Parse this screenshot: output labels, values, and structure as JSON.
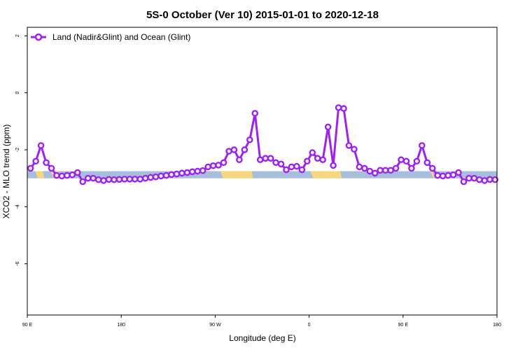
{
  "chart_data": {
    "type": "line",
    "title": "5S-0 October (Ver 10)   2015-01-01 to 2020-12-18",
    "xlabel": "Longitude (deg E)",
    "ylabel": "XCO2 - MLO trend (ppm)",
    "xlim": [
      90,
      450
    ],
    "ylim": [
      -7.8,
      2.3
    ],
    "x_ticks": [
      {
        "value": 90,
        "label": "90 E"
      },
      {
        "value": 162,
        "label": "180"
      },
      {
        "value": 234,
        "label": "90 W"
      },
      {
        "value": 306,
        "label": "0"
      },
      {
        "value": 378,
        "label": "90 E"
      },
      {
        "value": 450,
        "label": "180"
      }
    ],
    "y_ticks": [
      {
        "value": 2,
        "label": "2"
      },
      {
        "value": 0,
        "label": "0"
      },
      {
        "value": -2,
        "label": "-2"
      },
      {
        "value": -4,
        "label": "-4"
      },
      {
        "value": -6,
        "label": "-6"
      }
    ],
    "grid": false,
    "legend": {
      "position": "top-left"
    },
    "series": [
      {
        "name": "Land (Nadir&Glint) and Ocean (Glint)",
        "color": "#a020f0",
        "x": [
          92.5,
          96.5,
          100.5,
          104.5,
          108.5,
          112.5,
          116.5,
          120.5,
          124.5,
          128.5,
          132.5,
          136.5,
          140.5,
          144.5,
          148.5,
          152.5,
          156.5,
          160.5,
          164.5,
          168.5,
          172.5,
          176.5,
          180.5,
          184.5,
          188.5,
          192.5,
          196.5,
          200.5,
          204.5,
          208.5,
          212.5,
          216.5,
          220.5,
          224.5,
          228.5,
          232.5,
          236.5,
          240.5,
          244.5,
          248.5,
          252.5,
          256.5,
          260.5,
          264.5,
          268.5,
          272.5,
          276.5,
          280.5,
          284.5,
          288.5,
          292.5,
          296.5,
          300.5,
          304.5,
          308.5,
          312.5,
          316.5,
          320.5,
          324.5,
          328.5,
          332.5,
          336.5,
          340.5,
          344.5,
          348.5,
          352.5,
          356.5,
          360.5,
          364.5,
          368.5,
          372.5,
          376.5,
          380.5,
          384.5,
          388.5,
          392.5,
          396.5,
          400.5,
          404.5,
          408.5,
          412.5,
          416.5,
          420.5,
          424.5,
          428.5,
          432.5,
          436.5,
          440.5,
          444.5,
          448.5
        ],
        "y": [
          -2.65,
          -2.4,
          -1.85,
          -2.45,
          -2.65,
          -2.9,
          -2.92,
          -2.9,
          -2.88,
          -2.8,
          -3.12,
          -3.0,
          -3.0,
          -3.05,
          -3.08,
          -3.04,
          -3.05,
          -3.04,
          -3.03,
          -3.03,
          -3.03,
          -3.03,
          -3.0,
          -2.97,
          -2.95,
          -2.92,
          -2.9,
          -2.87,
          -2.85,
          -2.82,
          -2.8,
          -2.77,
          -2.75,
          -2.73,
          -2.6,
          -2.56,
          -2.54,
          -2.45,
          -2.05,
          -2.0,
          -2.35,
          -2.0,
          -1.65,
          -0.72,
          -2.35,
          -2.3,
          -2.3,
          -2.45,
          -2.5,
          -2.7,
          -2.6,
          -2.58,
          -2.7,
          -2.4,
          -2.1,
          -2.3,
          -2.35,
          -1.2,
          -2.55,
          -0.52,
          -0.55,
          -1.85,
          -1.98,
          -2.6,
          -2.65,
          -2.75,
          -2.82,
          -2.72,
          -2.72,
          -2.72,
          -2.65,
          -2.35,
          -2.4,
          -2.65,
          -2.4,
          -1.85,
          -2.45,
          -2.65,
          -2.9,
          -2.92,
          -2.9,
          -2.88,
          -2.8,
          -3.12,
          -3.0,
          -3.0,
          -3.05,
          -3.08,
          -3.04,
          -3.05
        ]
      }
    ],
    "surface_bar": {
      "y_top": -2.75,
      "y_bottom": -3.0,
      "ocean_color": "#a8bedd",
      "land_color": "#f7d77c",
      "land_segments": [
        [
          96,
          103
        ],
        [
          108,
          115
        ],
        [
          238,
          263
        ],
        [
          307,
          331
        ],
        [
          399,
          402
        ],
        [
          418,
          420
        ]
      ]
    }
  }
}
